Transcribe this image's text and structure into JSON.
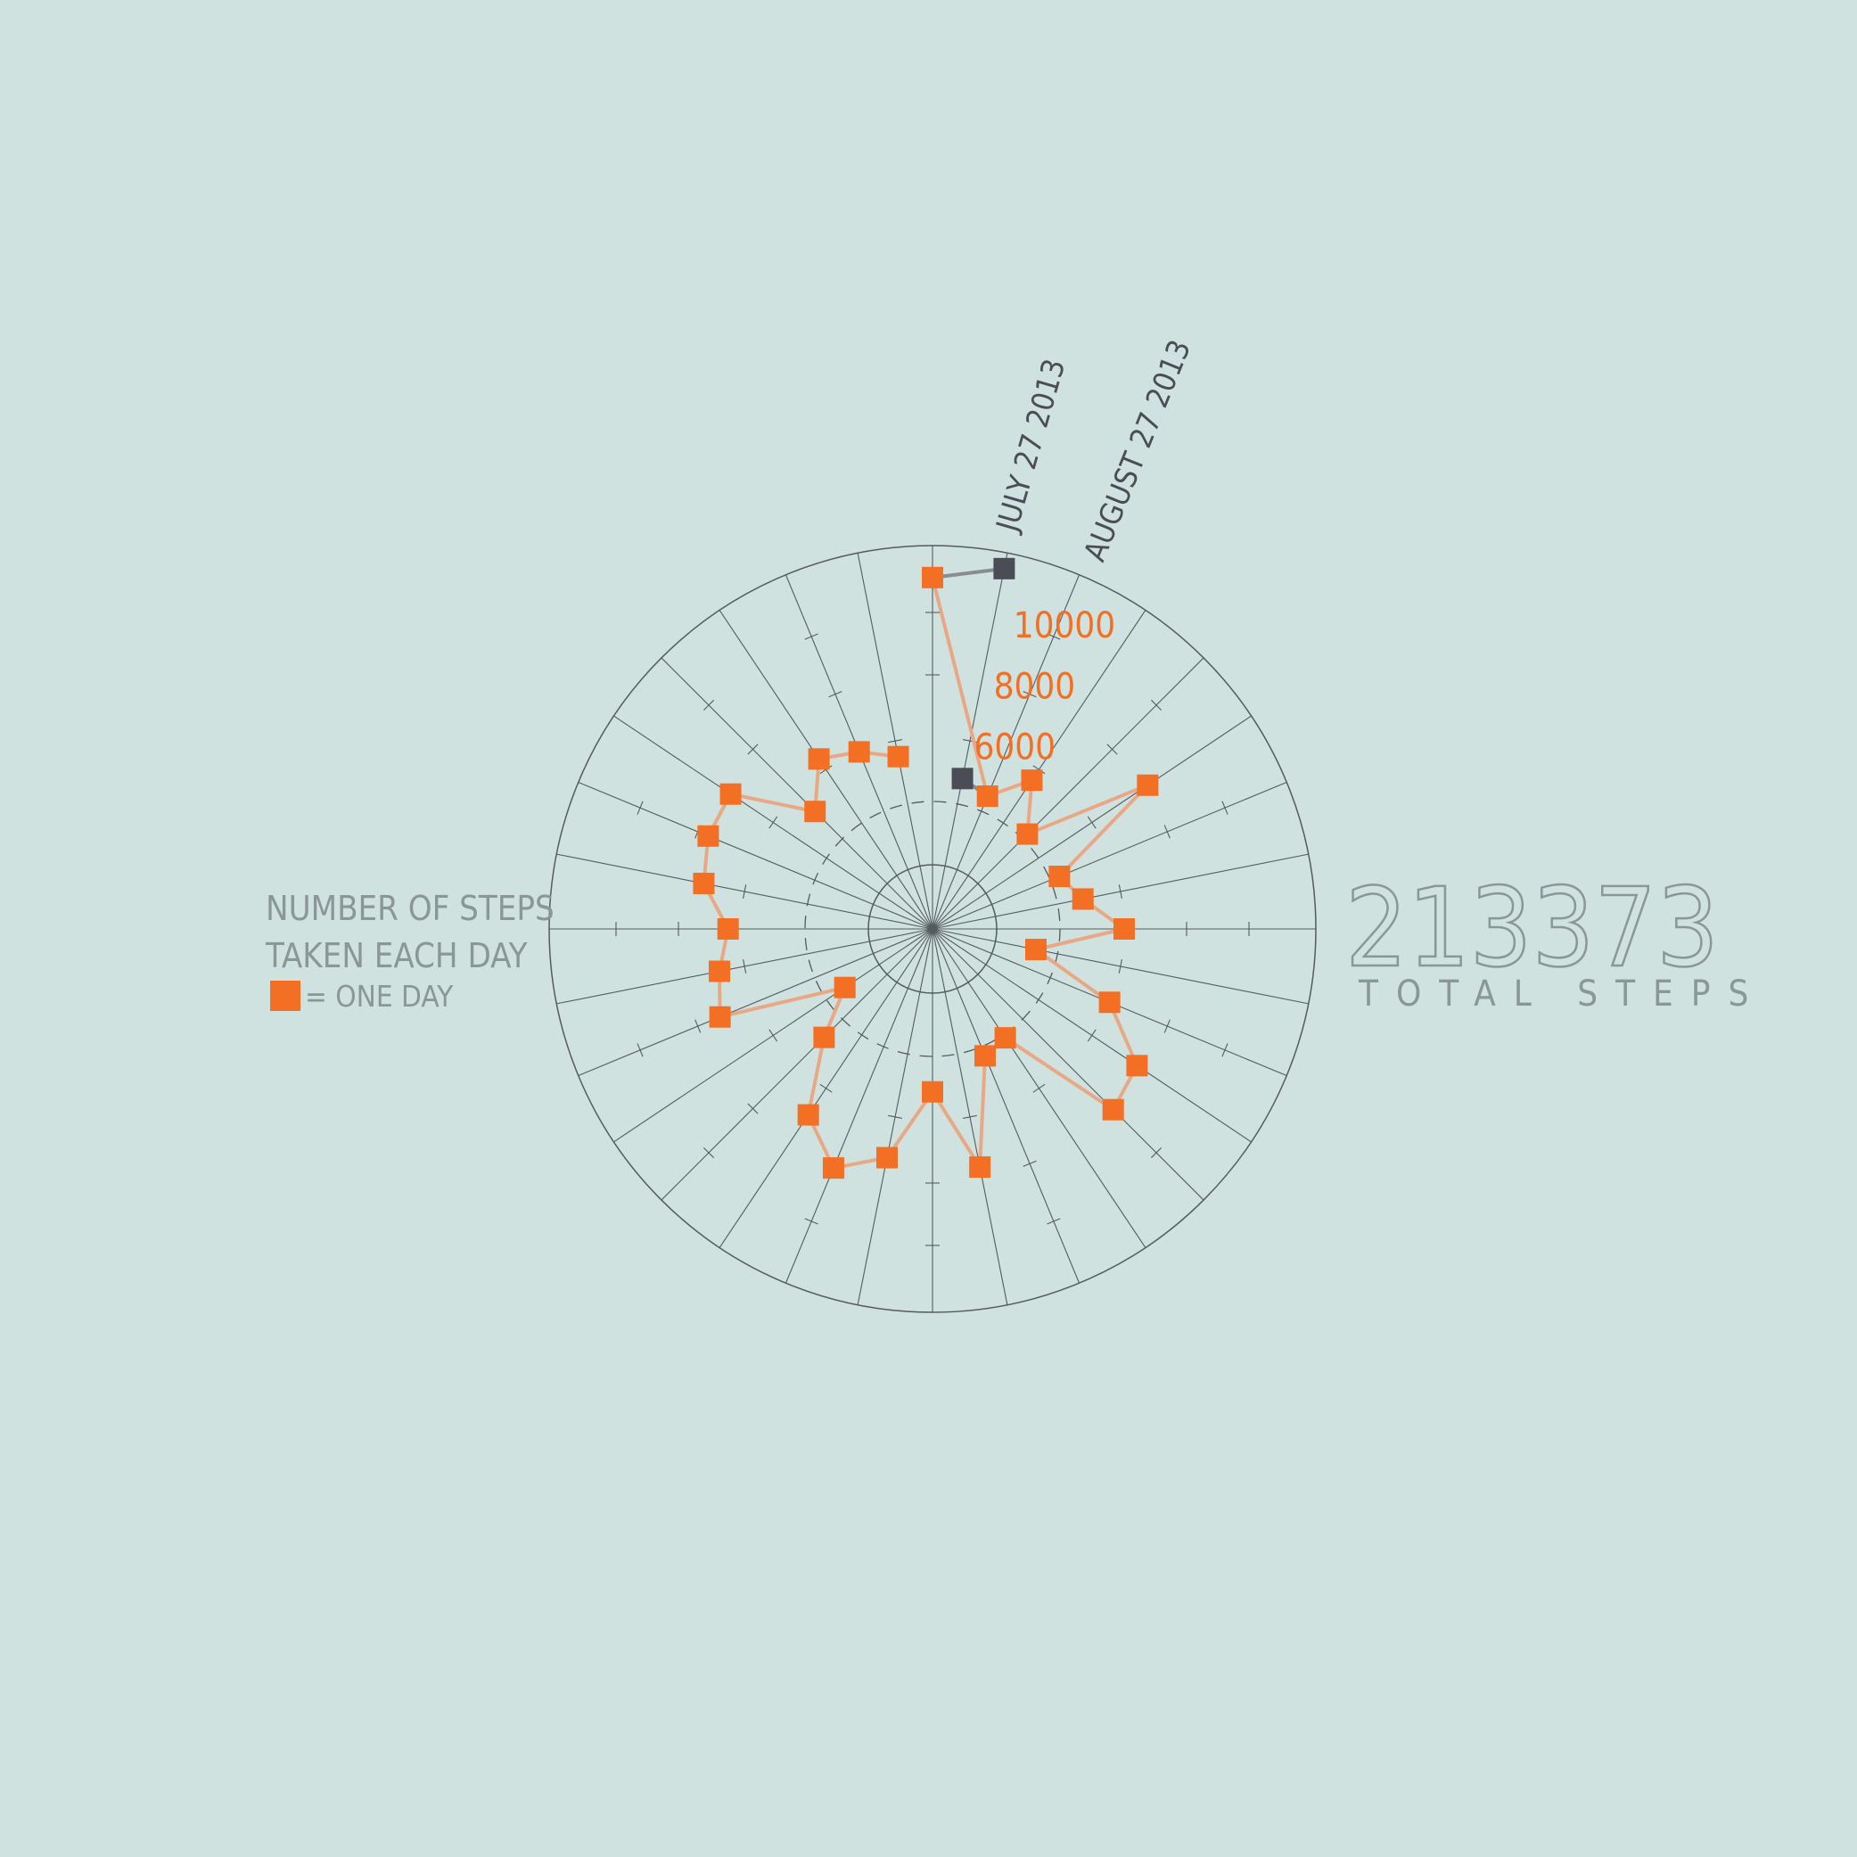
{
  "legend": {
    "line1": "NUMBER OF STEPS",
    "line2": "TAKEN EACH DAY",
    "marker_caption": "= ONE DAY"
  },
  "total": {
    "value": "213373",
    "caption": "TOTAL STEPS"
  },
  "colors": {
    "background": "#cfe2e0",
    "accent": "#f26f23",
    "accent_line": "#e9a885",
    "marker_dark": "#4a4d55",
    "grid": "#555a5e",
    "muted_text": "#8b9698"
  },
  "chart_data": {
    "type": "radar",
    "title": "",
    "num_spokes": 32,
    "radial_range": [
      0,
      12000
    ],
    "ring_labels": [
      "6000",
      "8000",
      "10000"
    ],
    "ring_label_values": [
      6000,
      8000,
      10000
    ],
    "date_labels": [
      {
        "text": "JULY 27 2013",
        "spoke": 1
      },
      {
        "text": "AUGUST 27 2013",
        "spoke": 2
      }
    ],
    "series": [
      {
        "values": [
          11000,
          11500,
          4500,
          5600,
          4200,
          8100,
          4300,
          4800,
          6000,
          3300,
          6000,
          7700,
          8000,
          4100,
          4300,
          7600,
          5100,
          7300,
          8100,
          7000,
          4800,
          3300,
          7200,
          6800,
          6400,
          7300,
          7600,
          7600,
          5200,
          6400,
          6000,
          5500
        ]
      }
    ],
    "markers": [
      {
        "day": 0,
        "value": 11000,
        "style": "orange"
      },
      {
        "day": 1,
        "value": 11500,
        "style": "dark"
      },
      {
        "day": 1,
        "value": 4800,
        "style": "dark"
      },
      {
        "day": 2,
        "value": 4500,
        "style": "orange"
      },
      {
        "day": 3,
        "value": 5600,
        "style": "orange"
      },
      {
        "day": 4,
        "value": 4200,
        "style": "orange"
      },
      {
        "day": 5,
        "value": 8100,
        "style": "orange"
      },
      {
        "day": 6,
        "value": 4300,
        "style": "orange"
      },
      {
        "day": 7,
        "value": 4800,
        "style": "orange"
      },
      {
        "day": 8,
        "value": 6000,
        "style": "orange"
      },
      {
        "day": 9,
        "value": 3300,
        "style": "orange"
      },
      {
        "day": 10,
        "value": 6000,
        "style": "orange"
      },
      {
        "day": 11,
        "value": 7700,
        "style": "orange"
      },
      {
        "day": 12,
        "value": 8000,
        "style": "orange"
      },
      {
        "day": 13,
        "value": 4100,
        "style": "orange"
      },
      {
        "day": 14,
        "value": 4300,
        "style": "orange"
      },
      {
        "day": 15,
        "value": 7600,
        "style": "orange"
      },
      {
        "day": 16,
        "value": 5100,
        "style": "orange"
      },
      {
        "day": 17,
        "value": 7300,
        "style": "orange"
      },
      {
        "day": 18,
        "value": 8100,
        "style": "orange"
      },
      {
        "day": 19,
        "value": 7000,
        "style": "orange"
      },
      {
        "day": 20,
        "value": 4800,
        "style": "orange"
      },
      {
        "day": 21,
        "value": 3300,
        "style": "orange"
      },
      {
        "day": 22,
        "value": 7200,
        "style": "orange"
      },
      {
        "day": 23,
        "value": 6800,
        "style": "orange"
      },
      {
        "day": 24,
        "value": 6400,
        "style": "orange"
      },
      {
        "day": 25,
        "value": 7300,
        "style": "orange"
      },
      {
        "day": 26,
        "value": 7600,
        "style": "orange"
      },
      {
        "day": 27,
        "value": 7600,
        "style": "orange"
      },
      {
        "day": 28,
        "value": 5200,
        "style": "orange"
      },
      {
        "day": 29,
        "value": 6400,
        "style": "orange"
      },
      {
        "day": 30,
        "value": 6000,
        "style": "orange"
      },
      {
        "day": 31,
        "value": 5500,
        "style": "orange"
      }
    ]
  }
}
